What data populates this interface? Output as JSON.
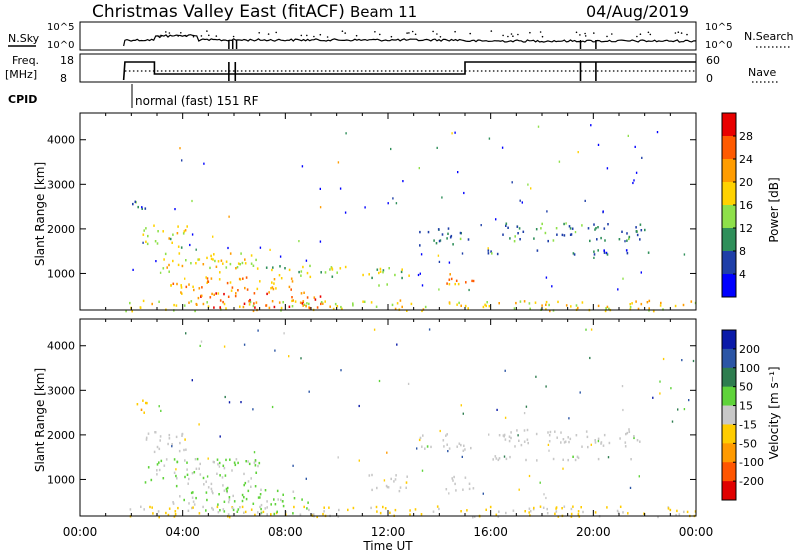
{
  "header": {
    "station": "Christmas Valley East (fitACF)",
    "beam": "Beam 11",
    "date": "04/Aug/2019"
  },
  "panels": {
    "nsky": {
      "label": "N.Sky",
      "tick_top": "10^5",
      "tick_bottom": "10^0",
      "right_label": "N.Search",
      "right_tick_top": "10^5",
      "right_tick_bottom": "10^0"
    },
    "freq": {
      "label_line1": "Freq.",
      "label_line2": "[MHz]",
      "tick_top": "18",
      "tick_bottom": "8",
      "right_label": "Nave",
      "right_tick_top": "60",
      "right_tick_bottom": "0"
    },
    "cpid": {
      "label": "CPID",
      "text": "normal (fast) 151 RF"
    }
  },
  "colorbars": {
    "power": {
      "label": "Power [dB]",
      "ticks": [
        "28",
        "24",
        "20",
        "16",
        "12",
        "8",
        "4"
      ],
      "colors": [
        "#e80000",
        "#ff5a00",
        "#ff9c00",
        "#ffd200",
        "#8ee04a",
        "#2f8f5a",
        "#1f3fa8",
        "#0000ff"
      ]
    },
    "velocity": {
      "label": "Velocity [m s⁻¹]",
      "ticks": [
        "200",
        "100",
        "50",
        "15",
        "-15",
        "-50",
        "-100",
        "-200"
      ],
      "colors": [
        "#0a1aa8",
        "#2b55a5",
        "#2e7d4f",
        "#5fd33a",
        "#c8c8c8",
        "#ffcc00",
        "#ff9a00",
        "#ff5500",
        "#e00000"
      ]
    }
  },
  "axes": {
    "ylabel": "Slant Range [km]",
    "xlabel": "Time UT",
    "yticks": [
      "1000",
      "2000",
      "3000",
      "4000"
    ],
    "xticks": [
      "00:00",
      "04:00",
      "08:00",
      "12:00",
      "16:00",
      "20:00",
      "00:00"
    ]
  },
  "chart_data": [
    {
      "type": "heatmap",
      "title": "Power",
      "xlabel": "Time UT",
      "ylabel": "Slant Range [km]",
      "x_ticks": [
        "00:00",
        "04:00",
        "08:00",
        "12:00",
        "16:00",
        "20:00",
        "00:00"
      ],
      "y_ticks": [
        1000,
        2000,
        3000,
        4000
      ],
      "xlim_hours": [
        0,
        24
      ],
      "ylim_km": [
        180,
        4600
      ],
      "colorbar": {
        "label": "Power [dB]",
        "range": [
          0,
          32
        ],
        "ticks": [
          4,
          8,
          12,
          16,
          20,
          24,
          28
        ]
      },
      "regions": [
        {
          "t0": 1.75,
          "t1": 24.0,
          "r0": 180,
          "r1": 420,
          "value": 18
        },
        {
          "t0": 2.0,
          "t1": 2.6,
          "r0": 2400,
          "r1": 2800,
          "value": 9
        },
        {
          "t0": 2.4,
          "t1": 4.2,
          "r0": 1600,
          "r1": 2100,
          "value": 16
        },
        {
          "t0": 3.0,
          "t1": 7.0,
          "r0": 1050,
          "r1": 1500,
          "value": 17
        },
        {
          "t0": 3.5,
          "t1": 8.5,
          "r0": 550,
          "r1": 950,
          "value": 22
        },
        {
          "t0": 4.5,
          "t1": 9.5,
          "r0": 250,
          "r1": 600,
          "value": 26
        },
        {
          "t0": 7.0,
          "t1": 11.0,
          "r0": 950,
          "r1": 1200,
          "value": 15
        },
        {
          "t0": 11.2,
          "t1": 12.8,
          "r0": 750,
          "r1": 1150,
          "value": 14
        },
        {
          "t0": 13.2,
          "t1": 15.2,
          "r0": 1650,
          "r1": 2050,
          "value": 8
        },
        {
          "t0": 14.2,
          "t1": 15.4,
          "r0": 750,
          "r1": 1100,
          "value": 22
        },
        {
          "t0": 15.0,
          "t1": 22.2,
          "r0": 1450,
          "r1": 1550,
          "value": 8
        },
        {
          "t0": 16.3,
          "t1": 22.0,
          "r0": 1750,
          "r1": 2150,
          "value": 9
        }
      ]
    },
    {
      "type": "heatmap",
      "title": "Velocity",
      "xlabel": "Time UT",
      "ylabel": "Slant Range [km]",
      "x_ticks": [
        "00:00",
        "04:00",
        "08:00",
        "12:00",
        "16:00",
        "20:00",
        "00:00"
      ],
      "y_ticks": [
        1000,
        2000,
        3000,
        4000
      ],
      "xlim_hours": [
        0,
        24
      ],
      "ylim_km": [
        180,
        4600
      ],
      "colorbar": {
        "label": "Velocity [m s⁻¹]",
        "range": [
          -250,
          250
        ],
        "ticks": [
          -200,
          -100,
          -50,
          -15,
          15,
          50,
          100,
          200
        ]
      },
      "regions": [
        {
          "t0": 1.75,
          "t1": 24.0,
          "r0": 180,
          "r1": 420,
          "value": -40
        },
        {
          "t0": 2.0,
          "t1": 2.6,
          "r0": 2400,
          "r1": 2800,
          "value": -60
        },
        {
          "t0": 2.4,
          "t1": 4.2,
          "r0": 1600,
          "r1": 2100,
          "value": 0
        },
        {
          "t0": 2.5,
          "t1": 7.0,
          "r0": 800,
          "r1": 1500,
          "value": 30
        },
        {
          "t0": 3.5,
          "t1": 9.0,
          "r0": 250,
          "r1": 800,
          "value": 30
        },
        {
          "t0": 11.2,
          "t1": 12.8,
          "r0": 750,
          "r1": 1150,
          "value": 0
        },
        {
          "t0": 13.2,
          "t1": 15.2,
          "r0": 1650,
          "r1": 2050,
          "value": 0
        },
        {
          "t0": 14.2,
          "t1": 15.4,
          "r0": 750,
          "r1": 1100,
          "value": 0
        },
        {
          "t0": 15.0,
          "t1": 22.2,
          "r0": 1450,
          "r1": 1550,
          "value": 0
        },
        {
          "t0": 16.3,
          "t1": 22.0,
          "r0": 1750,
          "r1": 2150,
          "value": 0
        }
      ]
    }
  ]
}
